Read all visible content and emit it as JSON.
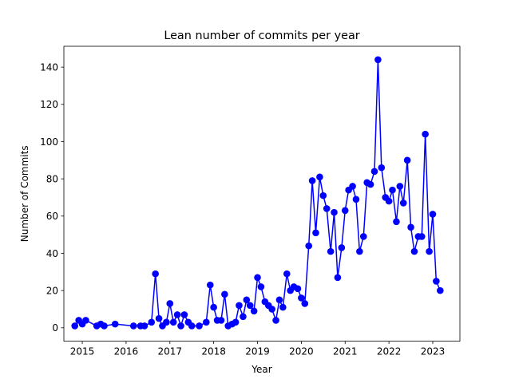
{
  "chart_data": {
    "type": "line",
    "title": "Lean number of commits per year",
    "xlabel": "Year",
    "ylabel": "Number of Commits",
    "xlim": [
      2014.58,
      2023.62
    ],
    "ylim": [
      -7.2,
      151.2
    ],
    "xticks": [
      2015,
      2016,
      2017,
      2018,
      2019,
      2020,
      2021,
      2022,
      2023
    ],
    "xtick_labels": [
      "2015",
      "2016",
      "2017",
      "2018",
      "2019",
      "2020",
      "2021",
      "2022",
      "2023"
    ],
    "yticks": [
      0,
      20,
      40,
      60,
      80,
      100,
      120,
      140
    ],
    "ytick_labels": [
      "0",
      "20",
      "40",
      "60",
      "80",
      "100",
      "120",
      "140"
    ],
    "grid": false,
    "legend": "none",
    "series": [
      {
        "color": "#0000ff",
        "marker": "circle",
        "points": [
          [
            2014.83,
            1
          ],
          [
            2014.92,
            4
          ],
          [
            2015.0,
            2
          ],
          [
            2015.08,
            4
          ],
          [
            2015.33,
            1
          ],
          [
            2015.42,
            2
          ],
          [
            2015.5,
            1
          ],
          [
            2015.75,
            2
          ],
          [
            2016.17,
            1
          ],
          [
            2016.33,
            1
          ],
          [
            2016.42,
            1
          ],
          [
            2016.58,
            3
          ],
          [
            2016.67,
            29
          ],
          [
            2016.75,
            5
          ],
          [
            2016.83,
            1
          ],
          [
            2016.92,
            3
          ],
          [
            2017.0,
            13
          ],
          [
            2017.08,
            3
          ],
          [
            2017.17,
            7
          ],
          [
            2017.25,
            1
          ],
          [
            2017.33,
            7
          ],
          [
            2017.42,
            3
          ],
          [
            2017.5,
            1
          ],
          [
            2017.67,
            1
          ],
          [
            2017.83,
            3
          ],
          [
            2017.92,
            23
          ],
          [
            2018.0,
            11
          ],
          [
            2018.08,
            4
          ],
          [
            2018.17,
            4
          ],
          [
            2018.25,
            18
          ],
          [
            2018.33,
            1
          ],
          [
            2018.42,
            2
          ],
          [
            2018.5,
            3
          ],
          [
            2018.58,
            12
          ],
          [
            2018.67,
            6
          ],
          [
            2018.75,
            15
          ],
          [
            2018.83,
            12
          ],
          [
            2018.92,
            9
          ],
          [
            2019.0,
            27
          ],
          [
            2019.08,
            22
          ],
          [
            2019.17,
            14
          ],
          [
            2019.25,
            12
          ],
          [
            2019.33,
            10
          ],
          [
            2019.42,
            4
          ],
          [
            2019.5,
            15
          ],
          [
            2019.58,
            11
          ],
          [
            2019.67,
            29
          ],
          [
            2019.75,
            20
          ],
          [
            2019.83,
            22
          ],
          [
            2019.92,
            21
          ],
          [
            2020.0,
            16
          ],
          [
            2020.08,
            13
          ],
          [
            2020.17,
            44
          ],
          [
            2020.25,
            79
          ],
          [
            2020.33,
            51
          ],
          [
            2020.42,
            81
          ],
          [
            2020.5,
            71
          ],
          [
            2020.58,
            64
          ],
          [
            2020.67,
            41
          ],
          [
            2020.75,
            62
          ],
          [
            2020.83,
            27
          ],
          [
            2020.92,
            43
          ],
          [
            2021.0,
            63
          ],
          [
            2021.08,
            74
          ],
          [
            2021.17,
            76
          ],
          [
            2021.25,
            69
          ],
          [
            2021.33,
            41
          ],
          [
            2021.42,
            49
          ],
          [
            2021.5,
            78
          ],
          [
            2021.58,
            77
          ],
          [
            2021.67,
            84
          ],
          [
            2021.75,
            144
          ],
          [
            2021.83,
            86
          ],
          [
            2021.92,
            70
          ],
          [
            2022.0,
            68
          ],
          [
            2022.08,
            74
          ],
          [
            2022.17,
            57
          ],
          [
            2022.25,
            76
          ],
          [
            2022.33,
            67
          ],
          [
            2022.42,
            90
          ],
          [
            2022.5,
            54
          ],
          [
            2022.58,
            41
          ],
          [
            2022.67,
            49
          ],
          [
            2022.75,
            49
          ],
          [
            2022.83,
            104
          ],
          [
            2022.92,
            41
          ],
          [
            2023.0,
            61
          ],
          [
            2023.08,
            25
          ],
          [
            2023.17,
            20
          ]
        ]
      }
    ]
  }
}
